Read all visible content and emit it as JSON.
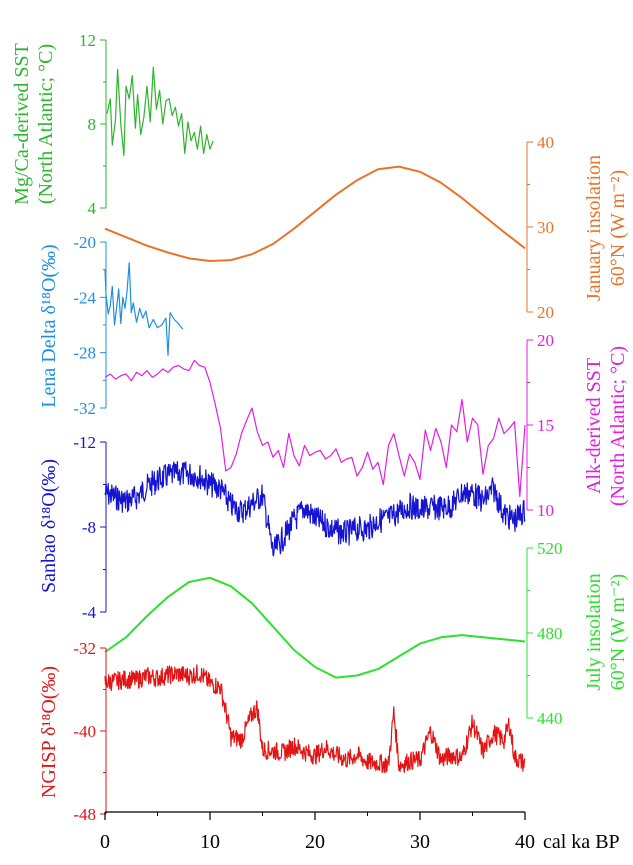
{
  "chart_data": {
    "type": "line",
    "x_axis": {
      "label": "cal ka BP",
      "range": [
        0,
        40
      ],
      "ticks": [
        "0",
        "10",
        "20",
        "30",
        "40"
      ],
      "reversed": false
    },
    "series": [
      {
        "key": "mgca",
        "name": "Mg/Ca-derived SST",
        "label_lines": [
          "Mg/Ca-derived SST",
          "(North Atlantic; °C)"
        ],
        "color": "#2db52d",
        "axis_side": "left",
        "range": [
          4,
          12
        ],
        "ticks": [
          "4",
          "8",
          "12"
        ],
        "x": [
          0.2,
          0.5,
          0.7,
          1.0,
          1.2,
          1.5,
          1.8,
          2.0,
          2.3,
          2.6,
          2.9,
          3.1,
          3.4,
          3.7,
          4.0,
          4.3,
          4.6,
          4.9,
          5.2,
          5.5,
          5.8,
          6.1,
          6.4,
          6.7,
          7.0,
          7.3,
          7.6,
          7.9,
          8.2,
          8.5,
          8.8,
          9.1,
          9.4,
          9.7,
          10.0,
          10.3
        ],
        "values": [
          8.5,
          9.2,
          7.0,
          8.2,
          10.6,
          8.0,
          6.5,
          9.8,
          9.2,
          10.3,
          7.8,
          9.4,
          7.5,
          8.3,
          9.8,
          8.1,
          10.7,
          8.7,
          9.6,
          8.0,
          9.1,
          9.2,
          8.4,
          8.8,
          7.9,
          8.5,
          6.6,
          8.1,
          7.2,
          7.6,
          6.8,
          7.9,
          6.6,
          7.5,
          6.8,
          7.2
        ]
      },
      {
        "key": "jan",
        "name": "January insolation",
        "label_lines": [
          "January insolation",
          "60°N (W m⁻²)"
        ],
        "color": "#e8742a",
        "axis_side": "right",
        "range": [
          20,
          40
        ],
        "ticks": [
          "20",
          "30",
          "40"
        ],
        "x": [
          0,
          2,
          4,
          6,
          8,
          10,
          12,
          14,
          16,
          18,
          20,
          22,
          24,
          26,
          28,
          30,
          32,
          34,
          36,
          38,
          40
        ],
        "values": [
          29.8,
          28.8,
          27.8,
          27.0,
          26.3,
          26.0,
          26.1,
          26.8,
          28.0,
          29.8,
          31.8,
          33.8,
          35.5,
          36.8,
          37.1,
          36.5,
          35.2,
          33.4,
          31.4,
          29.4,
          27.5
        ]
      },
      {
        "key": "lena",
        "name": "Lena Delta δ18O(‰)",
        "label_lines": [
          "Lena Delta δ¹⁸O(‰)"
        ],
        "color": "#1e90e0",
        "axis_side": "left",
        "range": [
          -32,
          -20
        ],
        "ticks": [
          "-32",
          "-28",
          "-24",
          "-20"
        ],
        "x": [
          0.0,
          0.1,
          0.3,
          0.5,
          0.7,
          0.9,
          1.1,
          1.3,
          1.5,
          1.7,
          1.9,
          2.1,
          2.3,
          2.5,
          2.7,
          3.0,
          3.3,
          3.6,
          3.9,
          4.2,
          4.6,
          5.0,
          5.4,
          5.8,
          6.0,
          6.2,
          6.6,
          7.0,
          7.4
        ],
        "values": [
          -22.0,
          -23.8,
          -25.2,
          -24.6,
          -23.2,
          -26.0,
          -24.8,
          -23.4,
          -25.9,
          -24.0,
          -24.8,
          -23.6,
          -21.5,
          -25.1,
          -24.4,
          -25.8,
          -24.8,
          -25.5,
          -25.0,
          -26.2,
          -25.6,
          -26.2,
          -26.0,
          -25.5,
          -28.2,
          -25.1,
          -25.6,
          -25.9,
          -26.3
        ]
      },
      {
        "key": "alk",
        "name": "Alk-derived SST",
        "label_lines": [
          "Alk-derived SST",
          "(North Atlantic; °C)"
        ],
        "color": "#e020e0",
        "axis_side": "right",
        "range": [
          10,
          20
        ],
        "ticks": [
          "10",
          "15",
          "20"
        ],
        "x": [
          0,
          0.5,
          1,
          1.5,
          2,
          2.5,
          3,
          3.5,
          4,
          4.5,
          5,
          5.5,
          6,
          6.5,
          7,
          7.5,
          8,
          8.5,
          9,
          9.5,
          10,
          10.5,
          11,
          11.5,
          12,
          12.5,
          13,
          13.5,
          14,
          14.5,
          15,
          15.5,
          16,
          16.5,
          17,
          17.5,
          18,
          18.5,
          19,
          19.5,
          20,
          20.5,
          21,
          21.5,
          22,
          22.5,
          23,
          23.5,
          24,
          24.5,
          25,
          25.5,
          26,
          26.5,
          27,
          27.5,
          28,
          28.5,
          29,
          29.5,
          30,
          30.5,
          31,
          31.5,
          32,
          32.5,
          33,
          33.5,
          34,
          34.5,
          35,
          35.5,
          36,
          36.5,
          37,
          37.5,
          38,
          38.5,
          39,
          39.5,
          40
        ],
        "values": [
          17.8,
          18.0,
          17.7,
          17.9,
          18.0,
          17.6,
          18.1,
          17.9,
          18.2,
          17.8,
          18.0,
          18.3,
          18.1,
          18.4,
          18.5,
          18.3,
          18.2,
          18.8,
          18.5,
          18.4,
          17.5,
          16.2,
          14.8,
          12.3,
          12.5,
          13.3,
          14.5,
          15.3,
          16.0,
          14.6,
          13.8,
          14.0,
          13.1,
          13.5,
          12.5,
          14.5,
          13.2,
          12.6,
          13.8,
          13.2,
          13.4,
          13.5,
          13.0,
          13.2,
          13.6,
          12.8,
          13.0,
          13.1,
          12.0,
          12.5,
          13.4,
          12.4,
          12.8,
          11.5,
          13.8,
          14.5,
          13.2,
          12.0,
          13.3,
          12.8,
          11.8,
          14.7,
          13.5,
          14.8,
          14.0,
          12.5,
          15.0,
          14.6,
          16.5,
          14.0,
          15.4,
          15.0,
          12.1,
          13.8,
          14.2,
          15.4,
          14.5,
          14.8,
          15.2,
          10.8,
          15.0
        ]
      },
      {
        "key": "sanbao",
        "name": "Sanbao δ18O(‰)",
        "label_lines": [
          "Sanbao δ¹⁸O(‰)"
        ],
        "color": "#1414d2",
        "axis_side": "left",
        "range": [
          -12,
          -4
        ],
        "ticks": [
          "-4",
          "-8",
          "-12"
        ],
        "inverted": true,
        "x": [
          0,
          1,
          2,
          3,
          4,
          5,
          6,
          7,
          8,
          9,
          10,
          11,
          12,
          13,
          14,
          15,
          16,
          17,
          18,
          19,
          20,
          21,
          22,
          23,
          24,
          25,
          26,
          27,
          28,
          29,
          30,
          31,
          32,
          33,
          34,
          35,
          36,
          37,
          38,
          39,
          40
        ],
        "values": [
          -9.6,
          -9.4,
          -9.2,
          -9.4,
          -9.9,
          -10.2,
          -10.4,
          -10.5,
          -10.5,
          -10.4,
          -10.0,
          -9.8,
          -9.0,
          -8.7,
          -9.1,
          -9.5,
          -6.8,
          -7.5,
          -8.3,
          -8.9,
          -8.4,
          -8.1,
          -7.8,
          -7.7,
          -7.9,
          -7.9,
          -8.3,
          -8.4,
          -8.7,
          -9.0,
          -8.8,
          -8.9,
          -8.9,
          -9.0,
          -9.6,
          -9.6,
          -9.2,
          -9.8,
          -8.6,
          -8.3,
          -8.8
        ]
      },
      {
        "key": "july",
        "name": "July insolation",
        "label_lines": [
          "July insolation",
          "60°N (W m⁻²)"
        ],
        "color": "#2ee02e",
        "axis_side": "right",
        "range": [
          440,
          520
        ],
        "ticks": [
          "440",
          "480",
          "520"
        ],
        "x": [
          0,
          2,
          4,
          6,
          8,
          10,
          12,
          14,
          16,
          18,
          20,
          22,
          24,
          26,
          28,
          30,
          32,
          34,
          36,
          38,
          40
        ],
        "values": [
          471,
          478,
          488,
          497,
          504,
          506,
          502,
          494,
          483,
          472,
          464,
          459,
          460,
          463,
          469,
          475,
          478,
          479,
          478,
          477,
          476
        ]
      },
      {
        "key": "ngrip",
        "name": "NGISP δ18O(‰)",
        "label_lines": [
          "NGISP δ¹⁸O(‰)"
        ],
        "color": "#e21414",
        "axis_side": "left",
        "range": [
          -48,
          -32
        ],
        "ticks": [
          "-48",
          "-40",
          "-32"
        ],
        "x": [
          0,
          1,
          2,
          3,
          4,
          5,
          6,
          7,
          8,
          9,
          10,
          11,
          11.7,
          12,
          13,
          14,
          14.5,
          15,
          16,
          17,
          18,
          19,
          20,
          21,
          22,
          23,
          24,
          25,
          26,
          27,
          27.5,
          28,
          29,
          30,
          31,
          32,
          33,
          34,
          35,
          36,
          37,
          38,
          38.5,
          39,
          40
        ],
        "values": [
          -35.3,
          -35.2,
          -35.0,
          -35.1,
          -34.7,
          -34.9,
          -34.6,
          -34.5,
          -34.7,
          -34.4,
          -35.4,
          -35.8,
          -39.0,
          -40.6,
          -40.8,
          -38.4,
          -37.7,
          -41.8,
          -41.9,
          -42.1,
          -41.4,
          -42.0,
          -42.4,
          -41.6,
          -42.3,
          -42.8,
          -42.3,
          -43.0,
          -43.1,
          -43.2,
          -38.2,
          -43.3,
          -42.9,
          -42.8,
          -40.0,
          -42.8,
          -42.3,
          -42.6,
          -39.2,
          -42.0,
          -40.2,
          -40.9,
          -39.2,
          -42.5,
          -43.2
        ]
      }
    ]
  }
}
